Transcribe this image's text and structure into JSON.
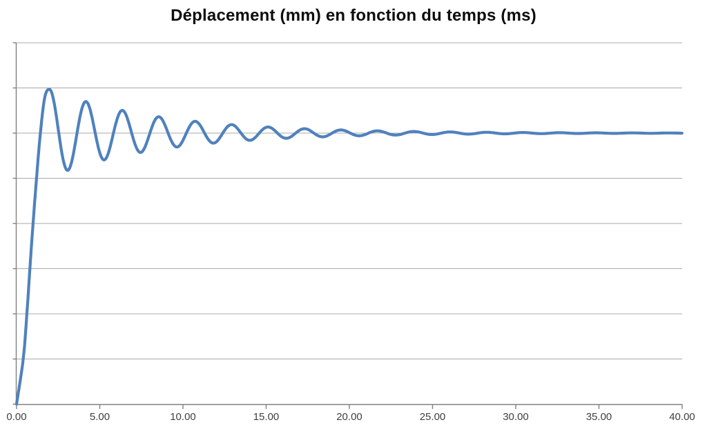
{
  "chart_data": {
    "type": "line",
    "title": "Déplacement (mm) en fonction du temps (ms)",
    "xlabel": "",
    "ylabel": "",
    "x_range": [
      0,
      40
    ],
    "y_range": [
      0,
      8
    ],
    "y_axis_labels_visible": false,
    "y_gridline_values": [
      0,
      1,
      2,
      3,
      4,
      5,
      6,
      7,
      8
    ],
    "x_ticks": [
      {
        "value": 0,
        "label": "0.00"
      },
      {
        "value": 5,
        "label": "5.00"
      },
      {
        "value": 10,
        "label": "10.00"
      },
      {
        "value": 15,
        "label": "15.00"
      },
      {
        "value": 20,
        "label": "20.00"
      },
      {
        "value": 25,
        "label": "25.00"
      },
      {
        "value": 30,
        "label": "30.00"
      },
      {
        "value": 35,
        "label": "35.00"
      },
      {
        "value": 40,
        "label": "40.00"
      }
    ],
    "grid": "horizontal-only",
    "legend_position": "none",
    "background": "#ffffff",
    "colors": {
      "series": "#4F81BD",
      "gridline": "#a9a9a9",
      "axis": "#7f7f7f",
      "tick_label": "#3f3f3f",
      "title": "#0d0d0d"
    },
    "series": [
      {
        "name": "déplacement",
        "color": "#4F81BD",
        "line_width": 4.2,
        "markers": "none",
        "note_units": "y in gridline units (0 = axis, 8 = top); y-axis value labels are cropped out of the screenshot",
        "rise_points": [
          [
            0,
            0
          ],
          [
            0.4,
            1.0
          ],
          [
            0.62,
            2.0
          ],
          [
            0.8,
            3.0
          ],
          [
            0.99,
            4.0
          ],
          [
            1.2,
            5.0
          ],
          [
            1.43,
            6.0
          ],
          [
            1.7,
            6.8
          ],
          [
            1.99,
            6.97
          ]
        ],
        "oscillation": {
          "formula": "y(t) = eq + A0 * exp(-decay*(t-t0)) * cos(2*pi*(t-t0)/T)",
          "t_start": 1.99,
          "t_end": 40,
          "equilibrium": 6.0,
          "amplitude_at_start": 0.97,
          "period_ms": 2.19,
          "decay_per_ms": 0.15
        },
        "peaks": [
          [
            1.99,
            6.97
          ],
          [
            4.18,
            6.7
          ],
          [
            6.37,
            6.5
          ],
          [
            8.56,
            6.36
          ],
          [
            10.75,
            6.26
          ],
          [
            12.94,
            6.19
          ],
          [
            15.13,
            6.14
          ],
          [
            17.32,
            6.1
          ],
          [
            19.51,
            6.07
          ],
          [
            21.7,
            6.05
          ],
          [
            23.89,
            6.04
          ],
          [
            26.08,
            6.03
          ],
          [
            28.27,
            6.02
          ],
          [
            30.46,
            6.01
          ],
          [
            32.65,
            6.01
          ],
          [
            34.84,
            6.01
          ],
          [
            37.03,
            6.01
          ],
          [
            39.22,
            6.0
          ]
        ],
        "troughs": [
          [
            3.09,
            5.18
          ],
          [
            5.28,
            5.41
          ],
          [
            7.47,
            5.57
          ],
          [
            9.66,
            5.69
          ],
          [
            11.85,
            5.78
          ],
          [
            14.04,
            5.84
          ],
          [
            16.23,
            5.89
          ],
          [
            18.42,
            5.92
          ],
          [
            20.61,
            5.94
          ],
          [
            22.8,
            5.96
          ],
          [
            24.99,
            5.97
          ],
          [
            27.18,
            5.98
          ],
          [
            29.37,
            5.98
          ],
          [
            31.56,
            5.99
          ],
          [
            33.75,
            5.99
          ],
          [
            35.94,
            5.99
          ],
          [
            38.13,
            6.0
          ]
        ]
      }
    ]
  }
}
